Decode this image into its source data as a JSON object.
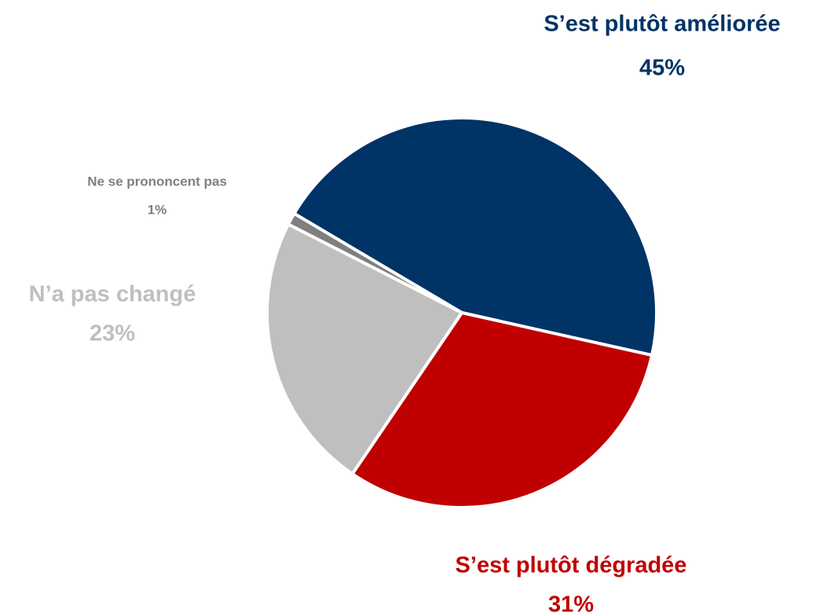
{
  "chart_data": {
    "type": "pie",
    "categories": [
      "S’est plutôt améliorée",
      "S’est plutôt dégradée",
      "N’a pas changé",
      "Ne se prononcent pas"
    ],
    "values": [
      45,
      31,
      23,
      1
    ],
    "value_labels": [
      "45%",
      "31%",
      "23%",
      "1%"
    ],
    "colors": [
      "#003366",
      "#c00000",
      "#bfbfbf",
      "#7f7f7f"
    ],
    "start_angle": -149.4,
    "direction": "clockwise"
  }
}
